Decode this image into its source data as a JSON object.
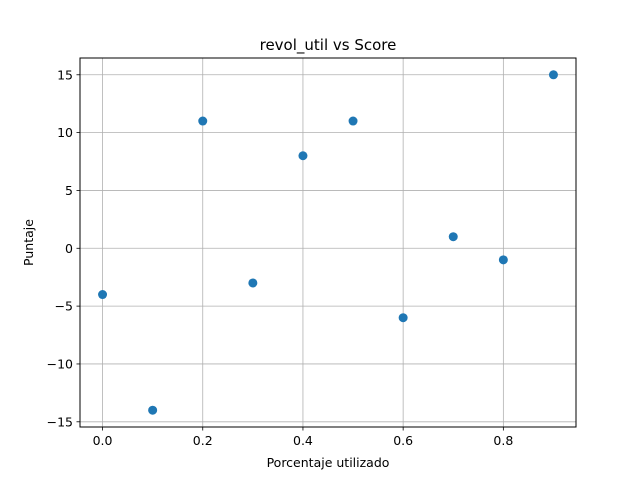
{
  "chart_data": {
    "type": "scatter",
    "title": "revol_util vs Score",
    "xlabel": "Porcentaje utilizado",
    "ylabel": "Puntaje",
    "xlim": [
      -0.045,
      0.945
    ],
    "ylim": [
      -15.45,
      16.45
    ],
    "x_ticks": [
      0.0,
      0.2,
      0.4,
      0.6,
      0.8
    ],
    "x_tick_labels": [
      "0.0",
      "0.2",
      "0.4",
      "0.6",
      "0.8"
    ],
    "y_ticks": [
      -15,
      -10,
      -5,
      0,
      5,
      10,
      15
    ],
    "y_tick_labels": [
      "−15",
      "−10",
      "−5",
      "0",
      "5",
      "10",
      "15"
    ],
    "grid": true,
    "marker_color": "#1f77b4",
    "grid_color": "#b0b0b0",
    "series": [
      {
        "x": [
          0.0,
          0.1,
          0.2,
          0.3,
          0.4,
          0.5,
          0.6,
          0.7,
          0.8,
          0.9
        ],
        "y": [
          -4,
          -14,
          11,
          -3,
          8,
          11,
          -6,
          1,
          -1,
          15
        ]
      }
    ]
  }
}
